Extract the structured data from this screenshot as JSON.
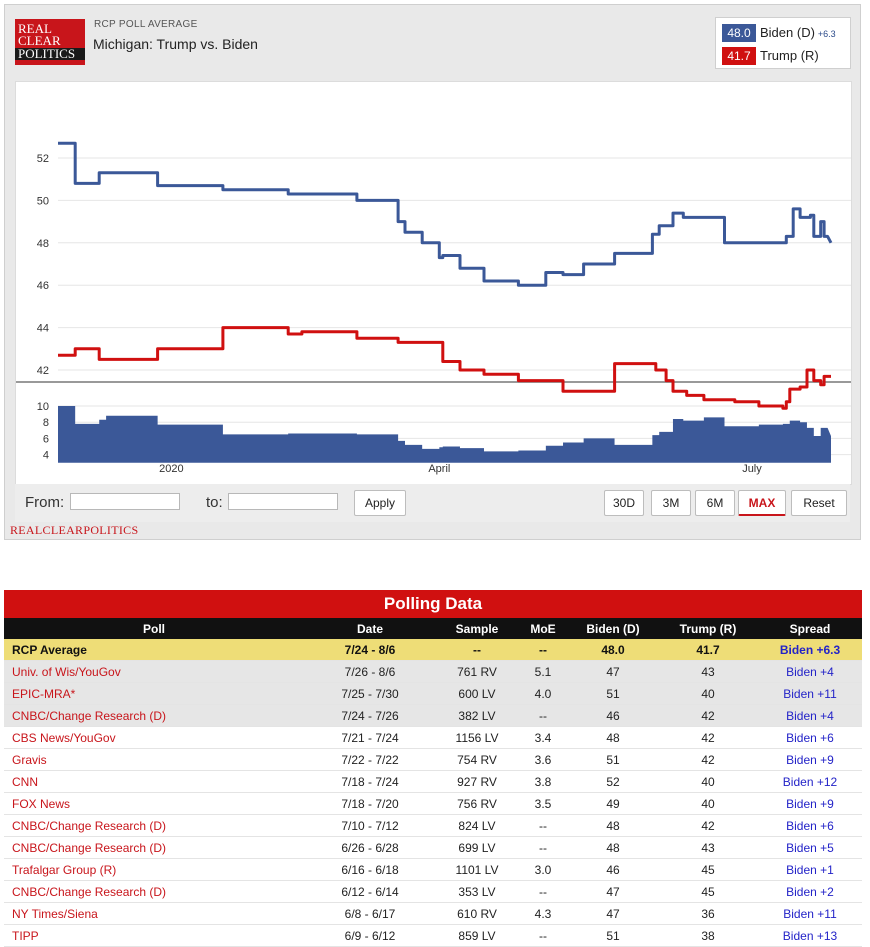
{
  "header": {
    "logo_lines": [
      "REAL",
      "CLEAR",
      "POLITICS"
    ],
    "kicker": "RCP POLL AVERAGE",
    "title": "Michigan: Trump vs. Biden"
  },
  "legend": [
    {
      "value": "48.0",
      "label": "Biden (D)",
      "spread": "+6.3",
      "color": "#3b5898"
    },
    {
      "value": "41.7",
      "label": "Trump (R)",
      "spread": "",
      "color": "#d01010"
    }
  ],
  "controls": {
    "from_label": "From:",
    "to_label": "to:",
    "from_value": "",
    "to_value": "",
    "apply_label": "Apply",
    "ranges": [
      "30D",
      "3M",
      "6M",
      "MAX"
    ],
    "active_range": "MAX",
    "reset_label": "Reset"
  },
  "footer_brand": "REALCLEARPOLITICS",
  "colors": {
    "biden": "#3b5898",
    "trump": "#d01010",
    "accent": "#c8151b"
  },
  "chart_data": [
    {
      "type": "line",
      "x_unit": "days (start of series to 8/6)",
      "x_ticks": [
        {
          "x": 33,
          "label": "2020"
        },
        {
          "x": 111,
          "label": "April"
        },
        {
          "x": 202,
          "label": "July"
        }
      ],
      "ylim": [
        40,
        53
      ],
      "y_ticks": [
        42,
        44,
        46,
        48,
        50,
        52
      ],
      "grid": true,
      "series": [
        {
          "name": "Biden (D)",
          "color": "#3b5898",
          "points": [
            [
              0,
              52.7
            ],
            [
              5,
              52.7
            ],
            [
              5,
              50.8
            ],
            [
              12,
              50.8
            ],
            [
              12,
              51.3
            ],
            [
              29,
              51.3
            ],
            [
              29,
              50.7
            ],
            [
              48,
              50.7
            ],
            [
              48,
              50.5
            ],
            [
              67,
              50.5
            ],
            [
              67,
              50.3
            ],
            [
              87,
              50.3
            ],
            [
              87,
              50.0
            ],
            [
              99,
              50.0
            ],
            [
              99,
              49.0
            ],
            [
              101,
              49.0
            ],
            [
              101,
              48.5
            ],
            [
              106,
              48.5
            ],
            [
              106,
              48.0
            ],
            [
              111,
              48.0
            ],
            [
              111,
              47.3
            ],
            [
              112,
              47.3
            ],
            [
              112,
              47.4
            ],
            [
              117,
              47.4
            ],
            [
              117,
              46.8
            ],
            [
              124,
              46.8
            ],
            [
              124,
              46.2
            ],
            [
              134,
              46.2
            ],
            [
              134,
              46.0
            ],
            [
              142,
              46.0
            ],
            [
              142,
              46.6
            ],
            [
              147,
              46.6
            ],
            [
              147,
              46.5
            ],
            [
              153,
              46.5
            ],
            [
              153,
              47.0
            ],
            [
              162,
              47.0
            ],
            [
              162,
              47.5
            ],
            [
              173,
              47.5
            ],
            [
              173,
              48.4
            ],
            [
              175,
              48.4
            ],
            [
              175,
              48.8
            ],
            [
              179,
              48.8
            ],
            [
              179,
              49.4
            ],
            [
              182,
              49.4
            ],
            [
              182,
              49.2
            ],
            [
              194,
              49.2
            ],
            [
              194,
              48.0
            ],
            [
              212,
              48.0
            ],
            [
              212,
              48.3
            ],
            [
              214,
              48.3
            ],
            [
              214,
              49.6
            ],
            [
              216,
              49.6
            ],
            [
              216,
              49.2
            ],
            [
              219,
              49.2
            ],
            [
              219,
              49.3
            ],
            [
              220,
              49.3
            ],
            [
              220,
              48.3
            ],
            [
              222,
              48.3
            ],
            [
              222,
              49.0
            ],
            [
              223,
              49.0
            ],
            [
              223,
              48.3
            ],
            [
              224,
              48.3
            ],
            [
              225,
              48.0
            ]
          ]
        },
        {
          "name": "Trump (R)",
          "color": "#d01010",
          "points": [
            [
              0,
              42.7
            ],
            [
              5,
              42.7
            ],
            [
              5,
              43.0
            ],
            [
              12,
              43.0
            ],
            [
              12,
              42.5
            ],
            [
              29,
              42.5
            ],
            [
              29,
              43.0
            ],
            [
              48,
              43.0
            ],
            [
              48,
              44.0
            ],
            [
              67,
              44.0
            ],
            [
              67,
              43.7
            ],
            [
              71,
              43.7
            ],
            [
              71,
              43.8
            ],
            [
              87,
              43.8
            ],
            [
              87,
              43.5
            ],
            [
              99,
              43.5
            ],
            [
              99,
              43.3
            ],
            [
              112,
              43.3
            ],
            [
              112,
              42.4
            ],
            [
              117,
              42.4
            ],
            [
              117,
              42.0
            ],
            [
              124,
              42.0
            ],
            [
              124,
              41.8
            ],
            [
              134,
              41.8
            ],
            [
              134,
              41.5
            ],
            [
              147,
              41.5
            ],
            [
              147,
              41.0
            ],
            [
              162,
              41.0
            ],
            [
              162,
              42.3
            ],
            [
              174,
              42.3
            ],
            [
              174,
              42.0
            ],
            [
              177,
              42.0
            ],
            [
              177,
              41.5
            ],
            [
              179,
              41.5
            ],
            [
              179,
              41.0
            ],
            [
              183,
              41.0
            ],
            [
              183,
              40.8
            ],
            [
              188,
              40.8
            ],
            [
              188,
              40.6
            ],
            [
              197,
              40.6
            ],
            [
              197,
              40.5
            ],
            [
              204,
              40.5
            ],
            [
              204,
              40.3
            ],
            [
              211,
              40.3
            ],
            [
              211,
              40.2
            ],
            [
              212,
              40.2
            ],
            [
              212,
              40.5
            ],
            [
              213,
              40.5
            ],
            [
              213,
              41.1
            ],
            [
              216,
              41.1
            ],
            [
              216,
              41.2
            ],
            [
              218,
              41.2
            ],
            [
              218,
              42.0
            ],
            [
              220,
              42.0
            ],
            [
              220,
              41.5
            ],
            [
              222,
              41.5
            ],
            [
              222,
              41.3
            ],
            [
              223,
              41.3
            ],
            [
              223,
              41.7
            ],
            [
              225,
              41.7
            ]
          ]
        }
      ]
    },
    {
      "type": "area",
      "ylim": [
        3,
        11
      ],
      "y_ticks": [
        4,
        6,
        8,
        10
      ],
      "series": [
        {
          "name": "Spread",
          "color": "#3b5898",
          "points": [
            [
              0,
              10
            ],
            [
              5,
              10
            ],
            [
              5,
              7.8
            ],
            [
              12,
              7.8
            ],
            [
              12,
              8.3
            ],
            [
              14,
              8.3
            ],
            [
              14,
              8.8
            ],
            [
              29,
              8.8
            ],
            [
              29,
              7.7
            ],
            [
              48,
              7.7
            ],
            [
              48,
              6.5
            ],
            [
              67,
              6.5
            ],
            [
              67,
              6.6
            ],
            [
              87,
              6.6
            ],
            [
              87,
              6.5
            ],
            [
              99,
              6.5
            ],
            [
              99,
              5.7
            ],
            [
              101,
              5.7
            ],
            [
              101,
              5.2
            ],
            [
              106,
              5.2
            ],
            [
              106,
              4.7
            ],
            [
              111,
              4.7
            ],
            [
              111,
              4.9
            ],
            [
              112,
              4.9
            ],
            [
              112,
              5.0
            ],
            [
              117,
              5.0
            ],
            [
              117,
              4.8
            ],
            [
              124,
              4.8
            ],
            [
              124,
              4.4
            ],
            [
              134,
              4.4
            ],
            [
              134,
              4.5
            ],
            [
              142,
              4.5
            ],
            [
              142,
              5.1
            ],
            [
              147,
              5.1
            ],
            [
              147,
              5.5
            ],
            [
              153,
              5.5
            ],
            [
              153,
              6.0
            ],
            [
              162,
              6.0
            ],
            [
              162,
              5.2
            ],
            [
              173,
              5.2
            ],
            [
              173,
              6.4
            ],
            [
              175,
              6.4
            ],
            [
              175,
              6.8
            ],
            [
              179,
              6.8
            ],
            [
              179,
              8.4
            ],
            [
              182,
              8.4
            ],
            [
              182,
              8.2
            ],
            [
              188,
              8.2
            ],
            [
              188,
              8.6
            ],
            [
              194,
              8.6
            ],
            [
              194,
              7.5
            ],
            [
              204,
              7.5
            ],
            [
              204,
              7.7
            ],
            [
              211,
              7.7
            ],
            [
              211,
              7.8
            ],
            [
              213,
              7.8
            ],
            [
              213,
              8.2
            ],
            [
              216,
              8.2
            ],
            [
              216,
              8.0
            ],
            [
              218,
              8.0
            ],
            [
              218,
              7.3
            ],
            [
              220,
              7.3
            ],
            [
              220,
              6.3
            ],
            [
              222,
              6.3
            ],
            [
              222,
              7.3
            ],
            [
              224,
              7.3
            ],
            [
              225,
              6.3
            ]
          ]
        }
      ]
    }
  ],
  "table": {
    "title": "Polling Data",
    "columns": [
      "Poll",
      "Date",
      "Sample",
      "MoE",
      "Biden (D)",
      "Trump (R)",
      "Spread"
    ],
    "average": [
      "RCP Average",
      "7/24 - 8/6",
      "--",
      "--",
      "48.0",
      "41.7",
      "Biden +6.3"
    ],
    "rows": [
      [
        "Univ. of Wis/YouGov",
        "7/26 - 8/6",
        "761 RV",
        "5.1",
        "47",
        "43",
        "Biden +4"
      ],
      [
        "EPIC-MRA*",
        "7/25 - 7/30",
        "600 LV",
        "4.0",
        "51",
        "40",
        "Biden +11"
      ],
      [
        "CNBC/Change Research (D)",
        "7/24 - 7/26",
        "382 LV",
        "--",
        "46",
        "42",
        "Biden +4"
      ],
      [
        "CBS News/YouGov",
        "7/21 - 7/24",
        "1156 LV",
        "3.4",
        "48",
        "42",
        "Biden +6"
      ],
      [
        "Gravis",
        "7/22 - 7/22",
        "754 RV",
        "3.6",
        "51",
        "42",
        "Biden +9"
      ],
      [
        "CNN",
        "7/18 - 7/24",
        "927 RV",
        "3.8",
        "52",
        "40",
        "Biden +12"
      ],
      [
        "FOX News",
        "7/18 - 7/20",
        "756 RV",
        "3.5",
        "49",
        "40",
        "Biden +9"
      ],
      [
        "CNBC/Change Research (D)",
        "7/10 - 7/12",
        "824 LV",
        "--",
        "48",
        "42",
        "Biden +6"
      ],
      [
        "CNBC/Change Research (D)",
        "6/26 - 6/28",
        "699 LV",
        "--",
        "48",
        "43",
        "Biden +5"
      ],
      [
        "Trafalgar Group (R)",
        "6/16 - 6/18",
        "1101 LV",
        "3.0",
        "46",
        "45",
        "Biden +1"
      ],
      [
        "CNBC/Change Research (D)",
        "6/12 - 6/14",
        "353 LV",
        "--",
        "47",
        "45",
        "Biden +2"
      ],
      [
        "NY Times/Siena",
        "6/8 - 6/17",
        "610 RV",
        "4.3",
        "47",
        "36",
        "Biden +11"
      ],
      [
        "TIPP",
        "6/9 - 6/12",
        "859 LV",
        "--",
        "51",
        "38",
        "Biden +13"
      ]
    ]
  }
}
